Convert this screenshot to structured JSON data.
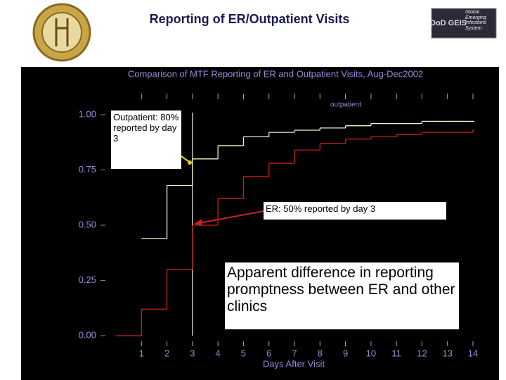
{
  "header": {
    "title": "Reporting of ER/Outpatient Visits",
    "logo_mark": "DoD GEIS",
    "logo_text": "Global Emerging Infections System"
  },
  "chart_data": {
    "type": "step",
    "title": "Comparison of MTF Reporting of ER and Outpatient Visits, Aug-Dec2002",
    "x_label": "Days After Visit",
    "xlim": [
      0,
      14
    ],
    "xticks": [
      1,
      2,
      3,
      4,
      5,
      6,
      7,
      8,
      9,
      10,
      11,
      12,
      13,
      14
    ],
    "ylim": [
      0,
      1
    ],
    "yticks": [
      {
        "value": 0,
        "label": "0.00"
      },
      {
        "value": 0.25,
        "label": "0.25"
      },
      {
        "value": 0.5,
        "label": "0.50"
      },
      {
        "value": 0.75,
        "label": "0.75"
      },
      {
        "value": 1,
        "label": "1.00"
      }
    ],
    "reference_x": 3,
    "series": [
      {
        "name": "outpatient",
        "color": "#f2f2c8",
        "x": [
          1,
          2,
          3,
          4,
          5,
          6,
          7,
          8,
          9,
          10,
          11,
          12,
          13,
          14
        ],
        "values": [
          0.44,
          0.68,
          0.8,
          0.86,
          0.9,
          0.92,
          0.93,
          0.94,
          0.95,
          0.96,
          0.96,
          0.97,
          0.97,
          0.97
        ]
      },
      {
        "color": "#c8201c",
        "x": [
          0,
          1,
          2,
          3,
          4,
          5,
          6,
          7,
          8,
          9,
          10,
          11,
          12,
          13,
          14
        ],
        "values": [
          0,
          0.12,
          0.3,
          0.5,
          0.62,
          0.72,
          0.78,
          0.84,
          0.87,
          0.89,
          0.9,
          0.91,
          0.92,
          0.92,
          0.93
        ]
      }
    ],
    "annotations": [
      "Outpatient: 80% reported by day 3",
      "ER: 50% reported by day 3",
      "Apparent difference in reporting promptness between ER and other clinics"
    ]
  }
}
